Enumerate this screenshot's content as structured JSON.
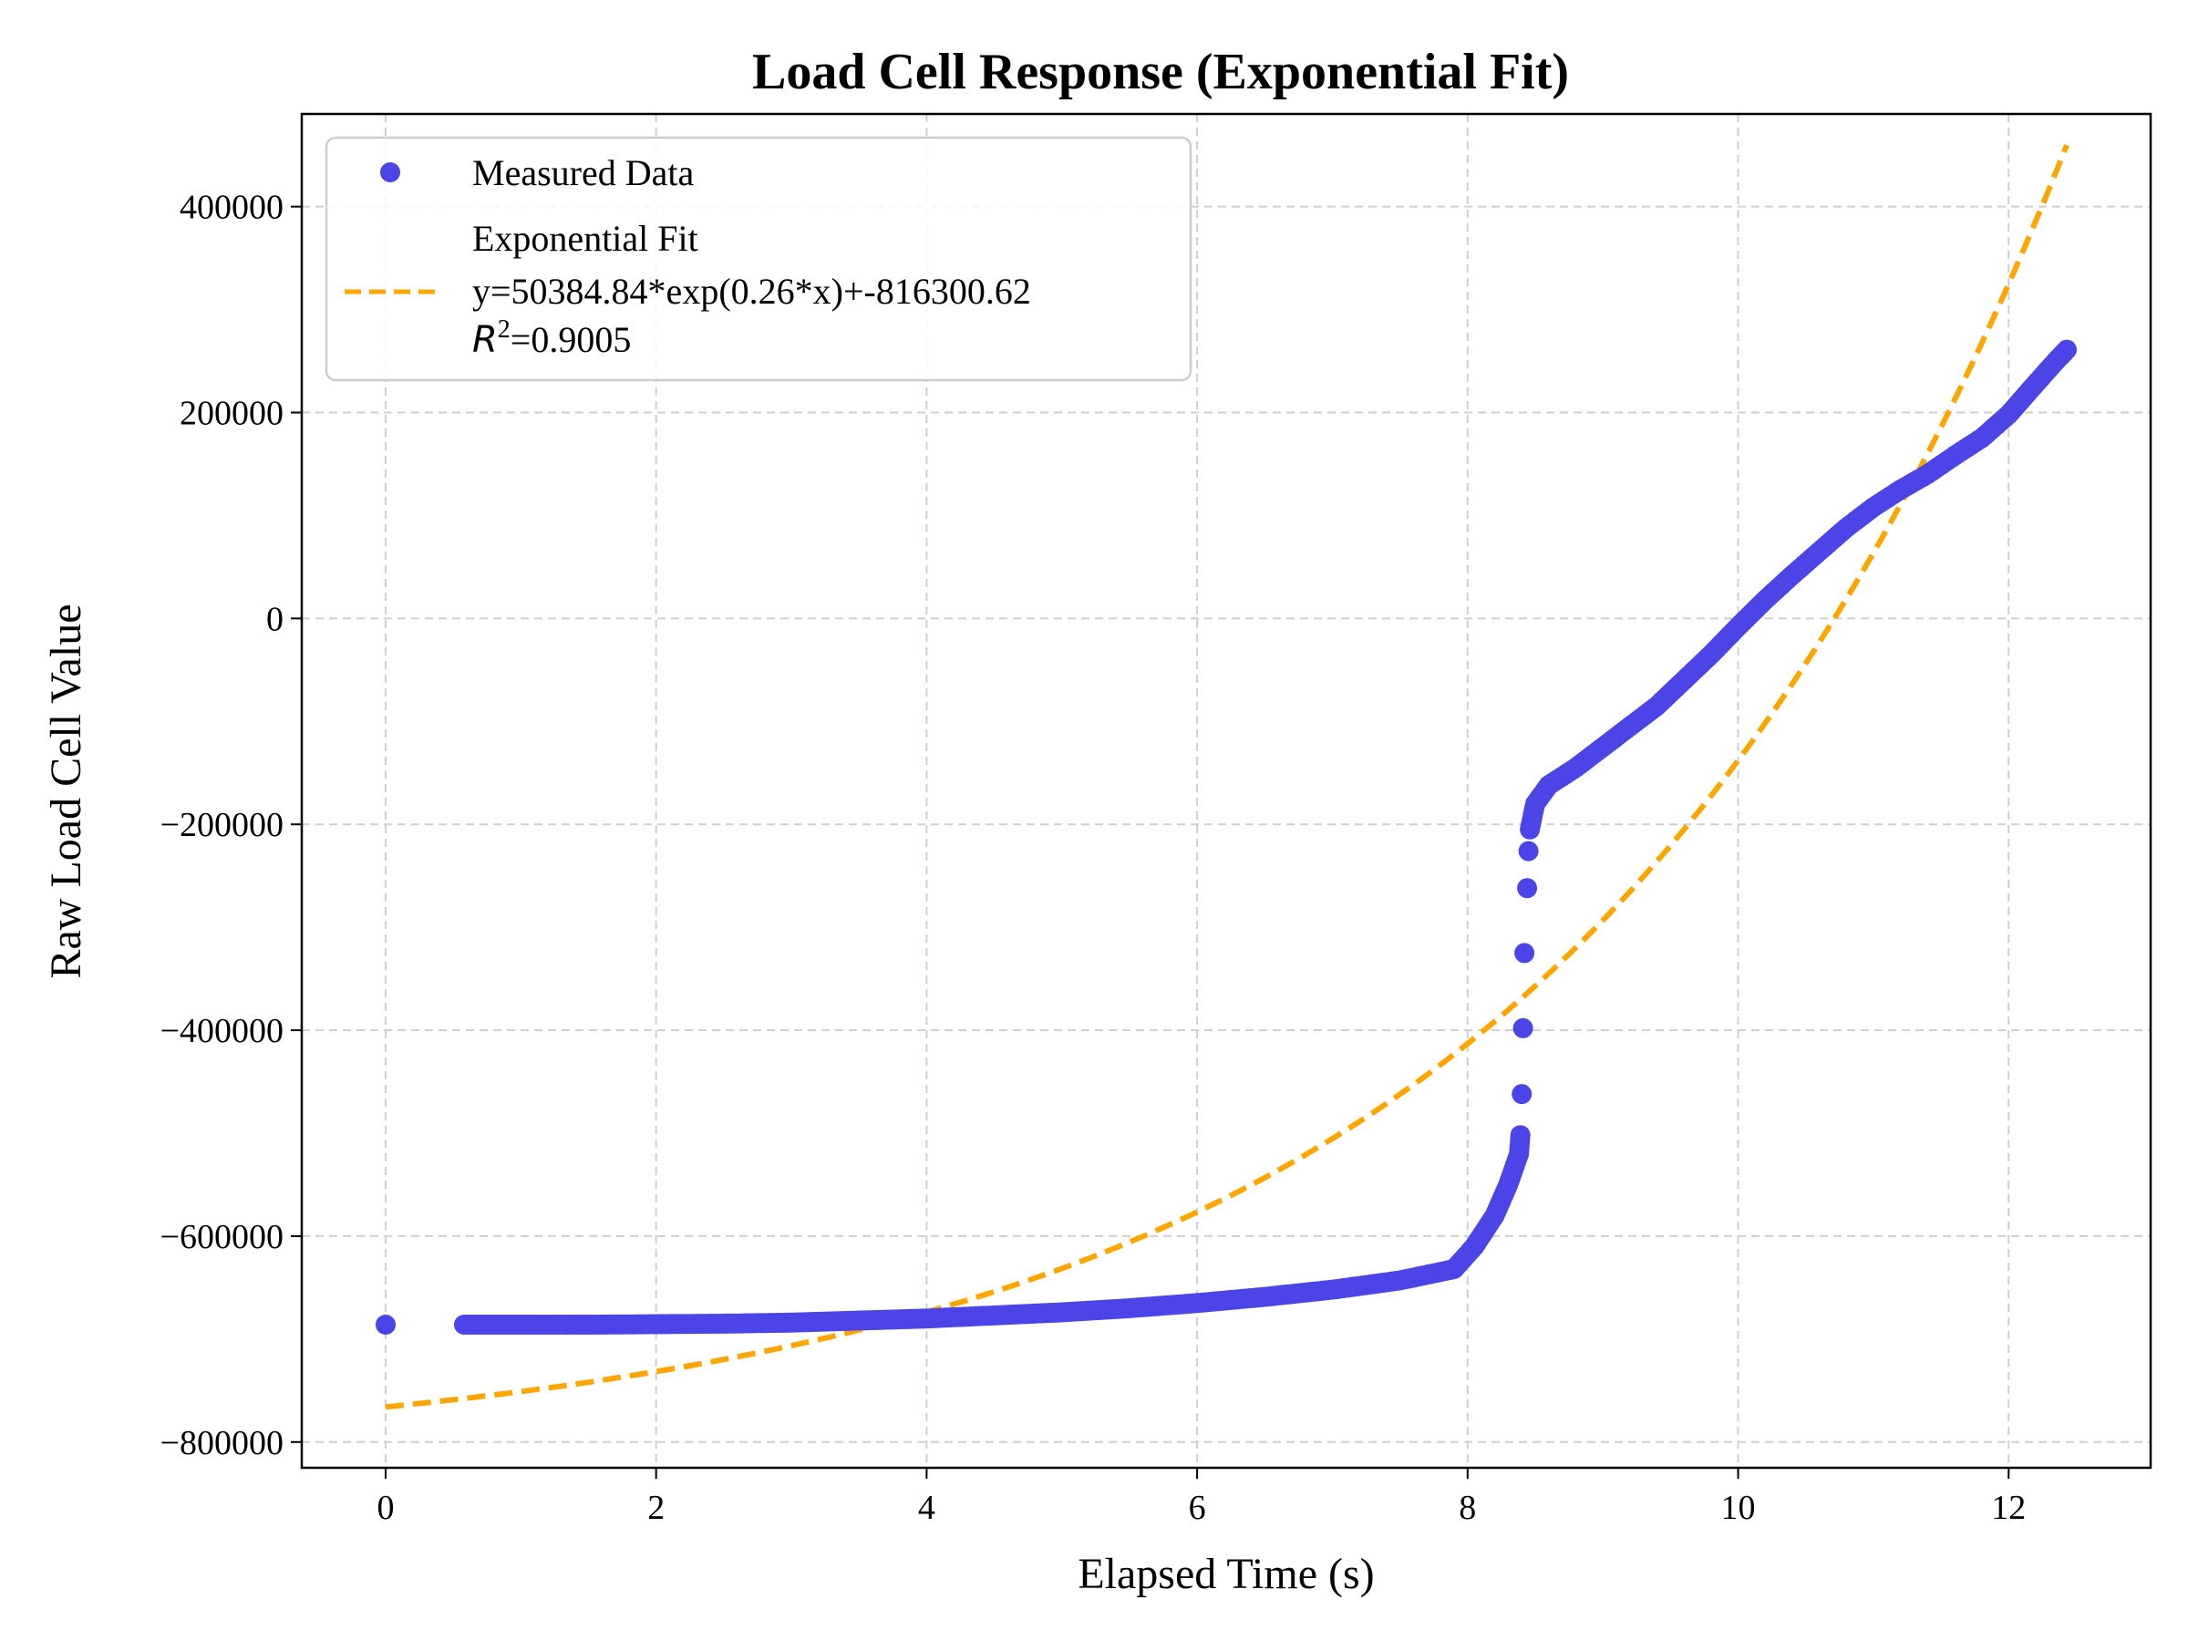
{
  "chart_data": {
    "type": "scatter",
    "title": "Load Cell Response (Exponential Fit)",
    "xlabel": "Elapsed Time (s)",
    "ylabel": "Raw Load Cell Value",
    "xlim": [
      -0.62,
      13.05
    ],
    "ylim": [
      -825000,
      490000
    ],
    "x_ticks": [
      0,
      2,
      4,
      6,
      8,
      10,
      12
    ],
    "x_tick_labels": [
      "0",
      "2",
      "4",
      "6",
      "8",
      "10",
      "12"
    ],
    "y_ticks": [
      -800000,
      -600000,
      -400000,
      -200000,
      0,
      200000,
      400000
    ],
    "y_tick_labels": [
      "−800000",
      "−600000",
      "−400000",
      "−200000",
      "0",
      "200000",
      "400000"
    ],
    "grid": true,
    "legend_position": "upper-left",
    "series": [
      {
        "name": "Measured Data",
        "kind": "scatter",
        "color": "#4b44e6",
        "points": [
          [
            0.0,
            -686000
          ],
          [
            0.58,
            -686000
          ],
          [
            1.0,
            -686000
          ],
          [
            1.5,
            -686000
          ],
          [
            2.0,
            -685500
          ],
          [
            2.5,
            -685000
          ],
          [
            3.0,
            -684000
          ],
          [
            3.5,
            -682000
          ],
          [
            4.0,
            -680000
          ],
          [
            4.5,
            -677000
          ],
          [
            5.0,
            -674000
          ],
          [
            5.5,
            -670000
          ],
          [
            6.0,
            -665000
          ],
          [
            6.5,
            -659000
          ],
          [
            7.0,
            -652000
          ],
          [
            7.5,
            -643000
          ],
          [
            7.9,
            -632000
          ],
          [
            8.05,
            -610000
          ],
          [
            8.2,
            -580000
          ],
          [
            8.3,
            -550000
          ],
          [
            8.38,
            -520000
          ],
          [
            8.39,
            -502000
          ],
          [
            8.4,
            -462000
          ],
          [
            8.41,
            -398000
          ],
          [
            8.42,
            -325000
          ],
          [
            8.44,
            -262000
          ],
          [
            8.45,
            -226000
          ],
          [
            8.46,
            -205000
          ],
          [
            8.5,
            -180000
          ],
          [
            8.6,
            -162000
          ],
          [
            8.8,
            -145000
          ],
          [
            9.0,
            -125000
          ],
          [
            9.2,
            -105000
          ],
          [
            9.4,
            -85000
          ],
          [
            9.6,
            -60000
          ],
          [
            9.8,
            -35000
          ],
          [
            10.0,
            -8000
          ],
          [
            10.2,
            18000
          ],
          [
            10.4,
            42000
          ],
          [
            10.6,
            65000
          ],
          [
            10.8,
            88000
          ],
          [
            11.0,
            108000
          ],
          [
            11.2,
            125000
          ],
          [
            11.4,
            140000
          ],
          [
            11.6,
            158000
          ],
          [
            11.8,
            175000
          ],
          [
            12.0,
            198000
          ],
          [
            12.2,
            228000
          ],
          [
            12.35,
            250000
          ],
          [
            12.43,
            261000
          ]
        ]
      },
      {
        "name": "Exponential Fit\ny=50384.84*exp(0.26*x)+-816300.62\nR²=0.9005",
        "kind": "line",
        "color": "#ffa500",
        "line_style": "dashed",
        "x_range": [
          0,
          12.43
        ],
        "a": 50384.84,
        "b": 0.26,
        "c": -816300.62,
        "r_squared": 0.9005
      }
    ]
  },
  "legend": {
    "entries": [
      {
        "lines": [
          "Measured Data"
        ]
      },
      {
        "lines": [
          "Exponential Fit",
          "y=50384.84*exp(0.26*x)+-816300.62",
          "=0.9005"
        ],
        "r_symbol": "R",
        "r_sup": "2"
      }
    ]
  }
}
